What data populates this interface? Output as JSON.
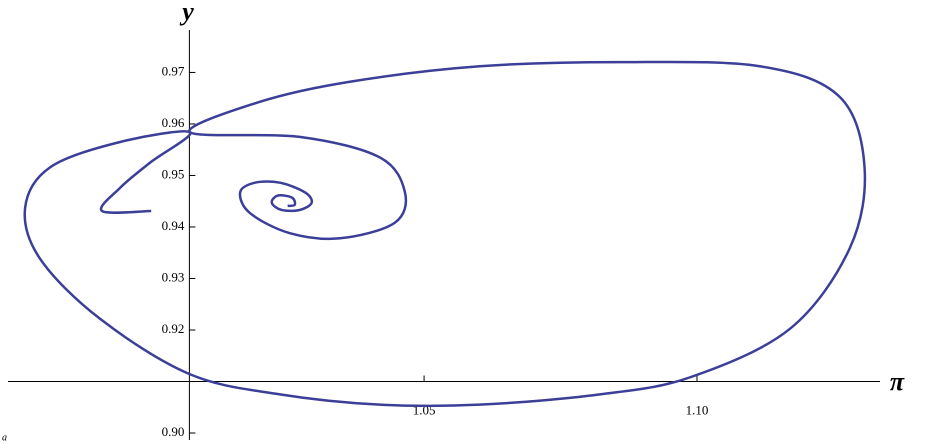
{
  "chart_data": {
    "type": "line",
    "x_label": "π",
    "y_label": "y",
    "annotation": "a",
    "axis_crossing": [
      1.007,
      0.91
    ],
    "xlim": [
      0.9723,
      1.1317
    ],
    "ylim": [
      0.9,
      0.9763
    ],
    "xticks": [
      1.05,
      {
        "value": 1.1,
        "label": "1.10"
      }
    ],
    "yticks": [
      {
        "value": 0.9,
        "label": "0.90"
      },
      0.92,
      0.93,
      0.94,
      0.95,
      0.96,
      0.97
    ],
    "series": [
      {
        "color": "#3b3f98",
        "x": [
          1.0,
          0.991,
          0.9943,
          0.9998,
          1.0071,
          0.9943,
          0.9815,
          0.9769,
          0.9796,
          0.9906,
          1.0071,
          1.0236,
          1.0419,
          1.0602,
          1.0822,
          1.0987,
          1.117,
          1.128,
          1.1307,
          1.1261,
          1.1115,
          1.0859,
          1.0602,
          1.0364,
          1.0199,
          1.0071,
          1.0272,
          1.0419,
          1.0465,
          1.0446,
          1.0346,
          1.0254,
          1.0181,
          1.0163,
          1.019,
          1.0236,
          1.0282,
          1.0294,
          1.0272,
          1.0239,
          1.0221,
          1.0232,
          1.0258,
          1.0263,
          1.025
        ],
        "values": [
          0.9431,
          0.9431,
          0.9476,
          0.9525,
          0.9584,
          0.9565,
          0.9516,
          0.9437,
          0.9339,
          0.9222,
          0.9114,
          0.9075,
          0.9055,
          0.9055,
          0.9075,
          0.9108,
          0.9202,
          0.9359,
          0.9516,
          0.9653,
          0.9712,
          0.972,
          0.9712,
          0.9682,
          0.9643,
          0.9584,
          0.9575,
          0.9535,
          0.9467,
          0.9408,
          0.9378,
          0.9388,
          0.9427,
          0.9467,
          0.9486,
          0.9486,
          0.9467,
          0.9447,
          0.9433,
          0.9433,
          0.9447,
          0.9461,
          0.9457,
          0.9443,
          0.9441
        ]
      }
    ]
  }
}
